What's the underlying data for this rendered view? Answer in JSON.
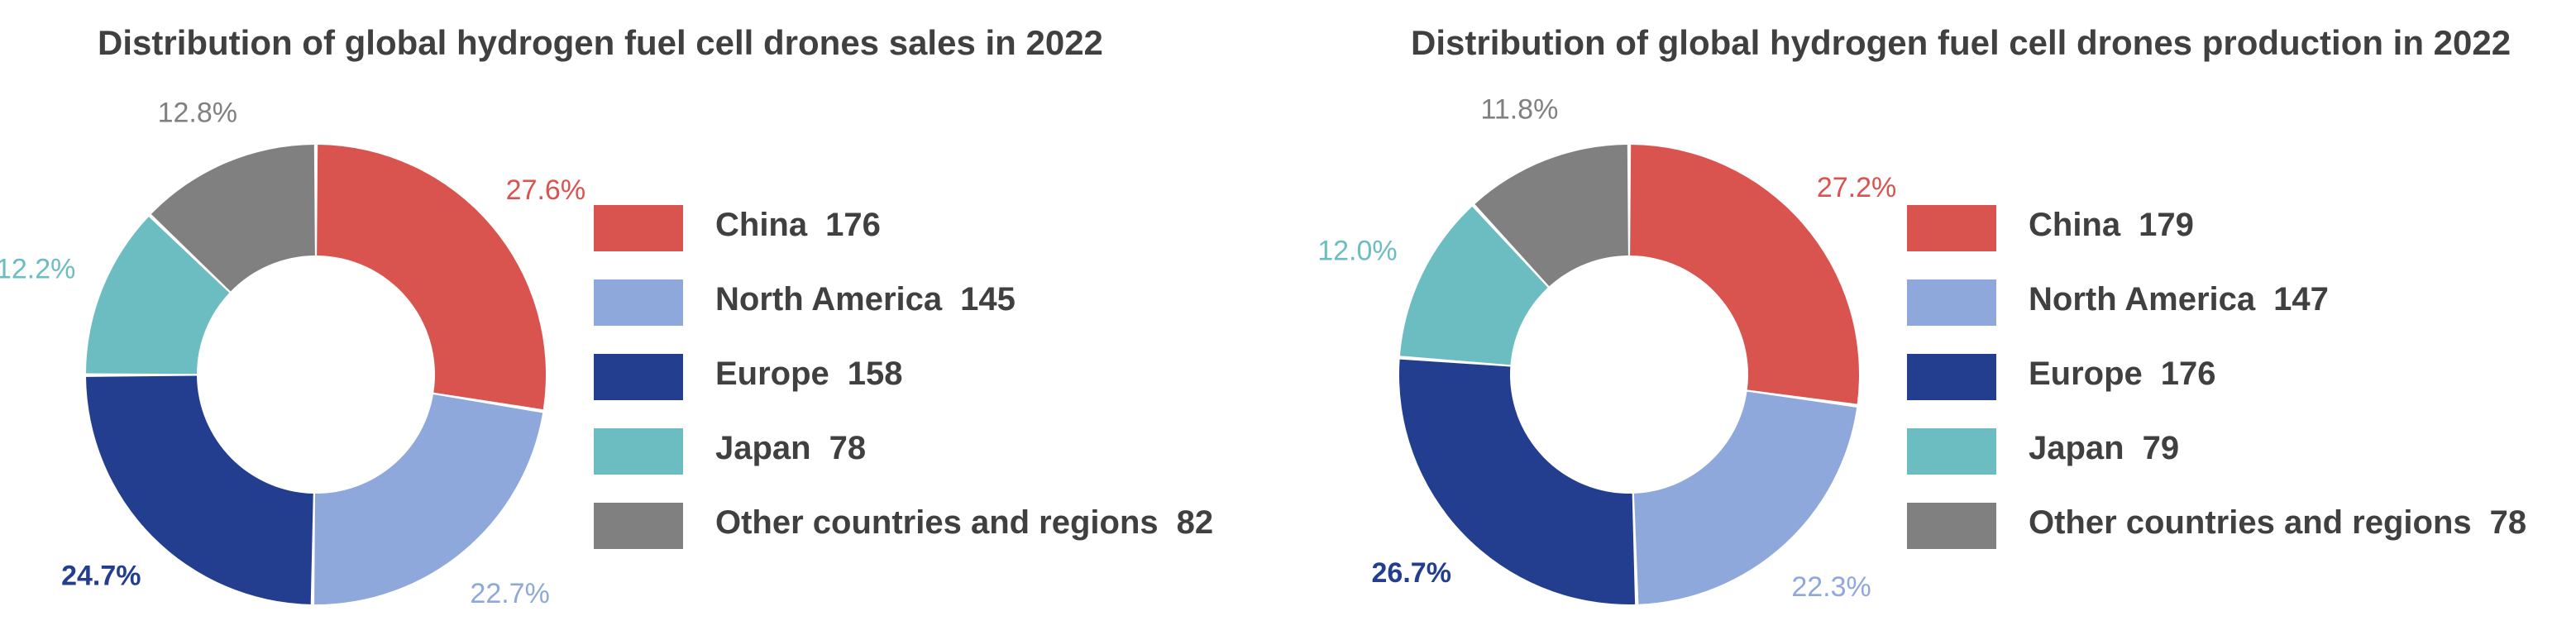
{
  "chart_data": [
    {
      "type": "pie",
      "title": "Distribution of global hydrogen fuel cell drones sales in 2022",
      "categories": [
        "China",
        "North America",
        "Europe",
        "Japan",
        "Other countries and regions"
      ],
      "values": [
        176,
        145,
        158,
        78,
        82
      ],
      "percent_labels": [
        "27.6%",
        "22.7%",
        "24.7%",
        "12.2%",
        "12.8%"
      ],
      "colors": [
        "#d9534f",
        "#8fa8dc",
        "#243e8f",
        "#6cbdc1",
        "#808080"
      ],
      "label_colors": [
        "#d9534f",
        "#8fa8dc",
        "#243e8f",
        "#6cbdc1",
        "#808080"
      ],
      "legend_position": "right",
      "donut": true
    },
    {
      "type": "pie",
      "title": "Distribution of global hydrogen fuel cell drones production in 2022",
      "categories": [
        "China",
        "North America",
        "Europe",
        "Japan",
        "Other countries and regions"
      ],
      "values": [
        179,
        147,
        176,
        79,
        78
      ],
      "percent_labels": [
        "27.2%",
        "22.3%",
        "26.7%",
        "12.0%",
        "11.8%"
      ],
      "colors": [
        "#d9534f",
        "#8fa8dc",
        "#243e8f",
        "#6cbdc1",
        "#808080"
      ],
      "label_colors": [
        "#d9534f",
        "#8fa8dc",
        "#243e8f",
        "#6cbdc1",
        "#808080"
      ],
      "legend_position": "right",
      "donut": true
    }
  ]
}
